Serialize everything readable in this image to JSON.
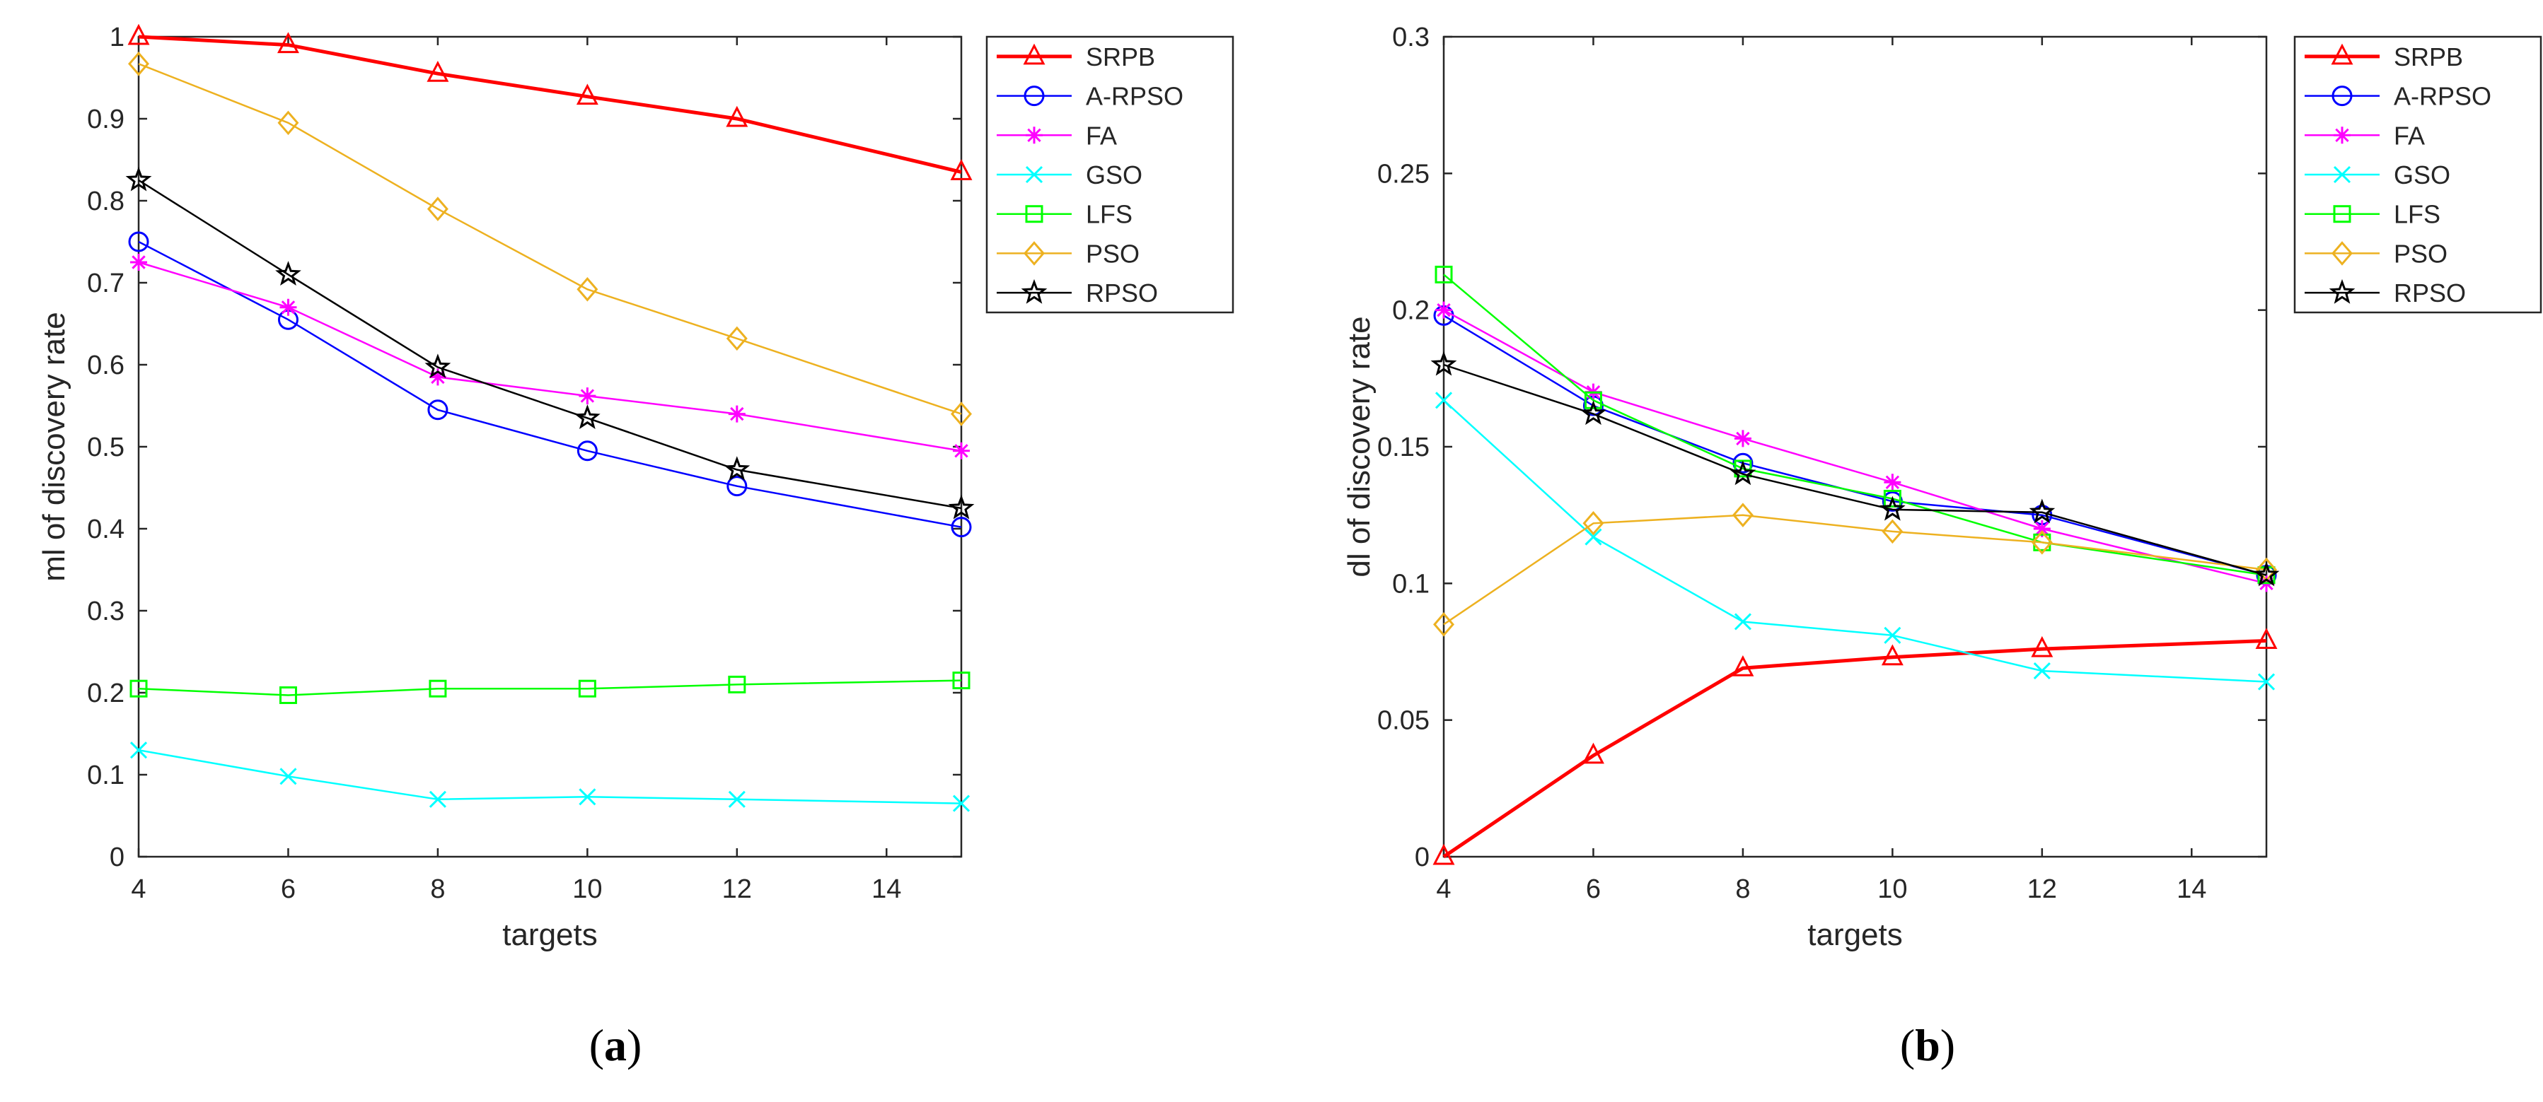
{
  "chart_data": [
    {
      "type": "line",
      "panel_label": "a",
      "xlabel": "targets",
      "ylabel": "ml of discovery rate",
      "xlim": [
        4,
        15
      ],
      "ylim": [
        0,
        1
      ],
      "xticks": [
        4,
        6,
        8,
        10,
        12,
        14
      ],
      "yticks": [
        0,
        0.1,
        0.2,
        0.3,
        0.4,
        0.5,
        0.6,
        0.7,
        0.8,
        0.9,
        1
      ],
      "x": [
        4,
        6,
        8,
        10,
        12,
        15
      ],
      "legend_position": "outside-right",
      "grid": false,
      "series": [
        {
          "name": "SRPB",
          "color": "#ff0000",
          "marker": "triangle",
          "values": [
            1.0,
            0.99,
            0.955,
            0.927,
            0.9,
            0.835
          ]
        },
        {
          "name": "A-RPSO",
          "color": "#0000ff",
          "marker": "circle",
          "values": [
            0.75,
            0.655,
            0.545,
            0.495,
            0.452,
            0.402
          ]
        },
        {
          "name": "FA",
          "color": "#ff00ff",
          "marker": "asterisk",
          "values": [
            0.725,
            0.67,
            0.585,
            0.562,
            0.54,
            0.495
          ]
        },
        {
          "name": "GSO",
          "color": "#00ffff",
          "marker": "x",
          "values": [
            0.13,
            0.098,
            0.07,
            0.073,
            0.07,
            0.065
          ]
        },
        {
          "name": "LFS",
          "color": "#00ff00",
          "marker": "square",
          "values": [
            0.205,
            0.197,
            0.205,
            0.205,
            0.21,
            0.215
          ]
        },
        {
          "name": "PSO",
          "color": "#edb120",
          "marker": "diamond",
          "values": [
            0.967,
            0.895,
            0.79,
            0.692,
            0.632,
            0.54
          ]
        },
        {
          "name": "RPSO",
          "color": "#000000",
          "marker": "star",
          "values": [
            0.825,
            0.71,
            0.597,
            0.535,
            0.472,
            0.425
          ]
        }
      ]
    },
    {
      "type": "line",
      "panel_label": "b",
      "xlabel": "targets",
      "ylabel": "dl of discovery rate",
      "xlim": [
        4,
        15
      ],
      "ylim": [
        0,
        0.3
      ],
      "xticks": [
        4,
        6,
        8,
        10,
        12,
        14
      ],
      "yticks": [
        0,
        0.05,
        0.1,
        0.15,
        0.2,
        0.25,
        0.3
      ],
      "x": [
        4,
        6,
        8,
        10,
        12,
        15
      ],
      "legend_position": "top-right",
      "grid": false,
      "series": [
        {
          "name": "SRPB",
          "color": "#ff0000",
          "marker": "triangle",
          "values": [
            0.0,
            0.037,
            0.069,
            0.073,
            0.076,
            0.079
          ]
        },
        {
          "name": "A-RPSO",
          "color": "#0000ff",
          "marker": "circle",
          "values": [
            0.198,
            0.165,
            0.144,
            0.13,
            0.125,
            0.103
          ]
        },
        {
          "name": "FA",
          "color": "#ff00ff",
          "marker": "asterisk",
          "values": [
            0.2,
            0.17,
            0.153,
            0.137,
            0.12,
            0.1
          ]
        },
        {
          "name": "GSO",
          "color": "#00ffff",
          "marker": "x",
          "values": [
            0.167,
            0.117,
            0.086,
            0.081,
            0.068,
            0.064
          ]
        },
        {
          "name": "LFS",
          "color": "#00ff00",
          "marker": "square",
          "values": [
            0.213,
            0.167,
            0.142,
            0.131,
            0.115,
            0.103
          ]
        },
        {
          "name": "PSO",
          "color": "#edb120",
          "marker": "diamond",
          "values": [
            0.085,
            0.122,
            0.125,
            0.119,
            0.115,
            0.105
          ]
        },
        {
          "name": "RPSO",
          "color": "#000000",
          "marker": "star",
          "values": [
            0.18,
            0.162,
            0.14,
            0.127,
            0.126,
            0.103
          ]
        }
      ]
    }
  ]
}
